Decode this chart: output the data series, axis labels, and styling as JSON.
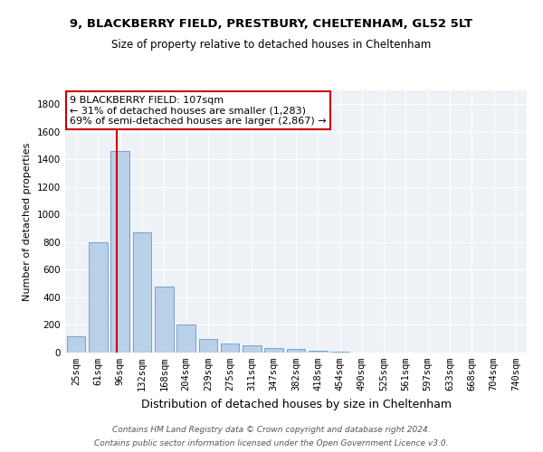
{
  "title1": "9, BLACKBERRY FIELD, PRESTBURY, CHELTENHAM, GL52 5LT",
  "title2": "Size of property relative to detached houses in Cheltenham",
  "xlabel": "Distribution of detached houses by size in Cheltenham",
  "ylabel": "Number of detached properties",
  "bar_labels": [
    "25sqm",
    "61sqm",
    "96sqm",
    "132sqm",
    "168sqm",
    "204sqm",
    "239sqm",
    "275sqm",
    "311sqm",
    "347sqm",
    "382sqm",
    "418sqm",
    "454sqm",
    "490sqm",
    "525sqm",
    "561sqm",
    "597sqm",
    "633sqm",
    "668sqm",
    "704sqm",
    "740sqm"
  ],
  "bar_values": [
    120,
    800,
    1460,
    870,
    480,
    200,
    100,
    65,
    50,
    30,
    25,
    10,
    5,
    3,
    2,
    1,
    1,
    1,
    0,
    0,
    0
  ],
  "bar_color": "#b8d0e8",
  "bar_edgecolor": "#6699cc",
  "vline_color": "#cc0000",
  "vline_pos": 1.83,
  "annotation_title": "9 BLACKBERRY FIELD: 107sqm",
  "annotation_line1": "← 31% of detached houses are smaller (1,283)",
  "annotation_line2": "69% of semi-detached houses are larger (2,867) →",
  "annotation_box_edgecolor": "#cc0000",
  "annotation_box_facecolor": "#ffffff",
  "ylim": [
    0,
    1900
  ],
  "yticks": [
    0,
    200,
    400,
    600,
    800,
    1000,
    1200,
    1400,
    1600,
    1800
  ],
  "footer1": "Contains HM Land Registry data © Crown copyright and database right 2024.",
  "footer2": "Contains public sector information licensed under the Open Government Licence v3.0.",
  "background_color": "#eef2f7"
}
